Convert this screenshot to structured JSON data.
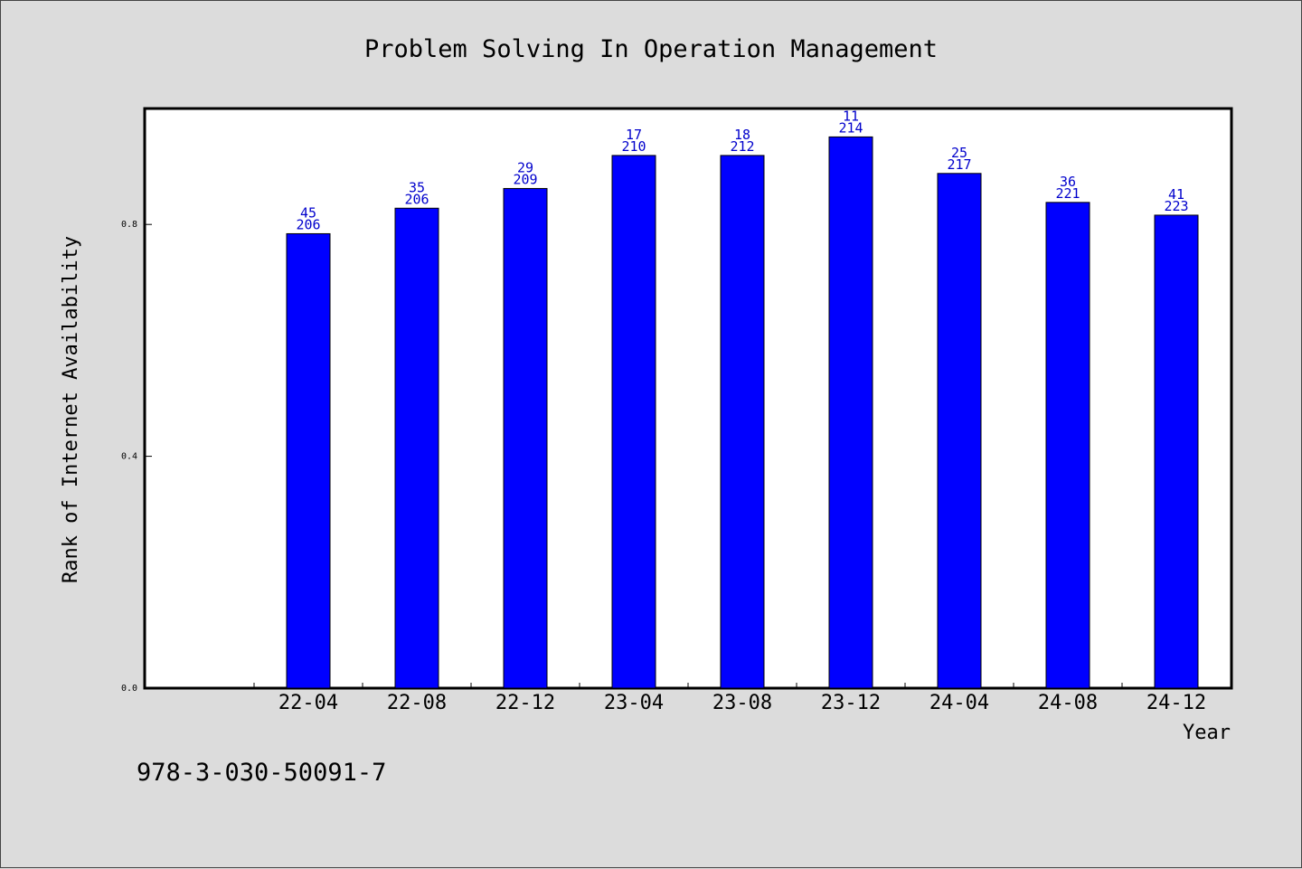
{
  "chart_data": {
    "type": "bar",
    "title": "Problem Solving In Operation Management",
    "xlabel": "Year",
    "ylabel": "Rank of Internet Availability",
    "categories": [
      "22-04",
      "22-08",
      "22-12",
      "23-04",
      "23-08",
      "23-12",
      "24-04",
      "24-08",
      "24-12"
    ],
    "values": [
      0.784,
      0.828,
      0.862,
      0.919,
      0.919,
      0.951,
      0.888,
      0.838,
      0.816
    ],
    "top_labels": [
      "45",
      "35",
      "29",
      "17",
      "18",
      "11",
      "25",
      "36",
      "41"
    ],
    "bottom_labels": [
      "206",
      "206",
      "209",
      "210",
      "212",
      "214",
      "217",
      "221",
      "223"
    ],
    "yticks": [
      "0.0",
      "0.4",
      "0.8"
    ],
    "ytick_values": [
      0.0,
      0.4,
      0.8
    ],
    "ylim": [
      0,
      1.0
    ],
    "bar_color": "#0000ff",
    "label_color": "#0000cc",
    "grid": false
  },
  "footer": {
    "isbn": "978-3-030-50091-7"
  }
}
